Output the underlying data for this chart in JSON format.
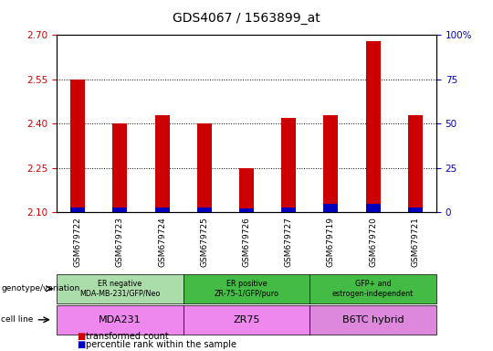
{
  "title": "GDS4067 / 1563899_at",
  "samples": [
    "GSM679722",
    "GSM679723",
    "GSM679724",
    "GSM679725",
    "GSM679726",
    "GSM679727",
    "GSM679719",
    "GSM679720",
    "GSM679721"
  ],
  "red_values": [
    2.55,
    2.4,
    2.43,
    2.4,
    2.25,
    2.42,
    2.43,
    2.68,
    2.43
  ],
  "blue_percentile": [
    3,
    3,
    3,
    3,
    2,
    3,
    5,
    5,
    3
  ],
  "ylim_left": [
    2.1,
    2.7
  ],
  "ylim_right": [
    0,
    100
  ],
  "yticks_left": [
    2.1,
    2.25,
    2.4,
    2.55,
    2.7
  ],
  "yticks_right": [
    0,
    25,
    50,
    75,
    100
  ],
  "bar_bottom": 2.1,
  "group_data": [
    {
      "label": "ER negative\nMDA-MB-231/GFP/Neo",
      "start": 0,
      "end": 3,
      "color": "#AADDAA"
    },
    {
      "label": "ER positive\nZR-75-1/GFP/puro",
      "start": 3,
      "end": 6,
      "color": "#44BB44"
    },
    {
      "label": "GFP+ and\nestrogen-independent",
      "start": 6,
      "end": 9,
      "color": "#44BB44"
    }
  ],
  "cell_data": [
    {
      "label": "MDA231",
      "start": 0,
      "end": 3,
      "color": "#EE88EE"
    },
    {
      "label": "ZR75",
      "start": 3,
      "end": 6,
      "color": "#EE88EE"
    },
    {
      "label": "B6TC hybrid",
      "start": 6,
      "end": 9,
      "color": "#DD88DD"
    }
  ],
  "legend_red": "transformed count",
  "legend_blue": "percentile rank within the sample",
  "bar_color_red": "#CC0000",
  "bar_color_blue": "#0000BB",
  "left_label_color": "#CC0000",
  "right_label_color": "#0000BB",
  "bar_width": 0.35,
  "grid_color": "black",
  "title_fontsize": 10
}
